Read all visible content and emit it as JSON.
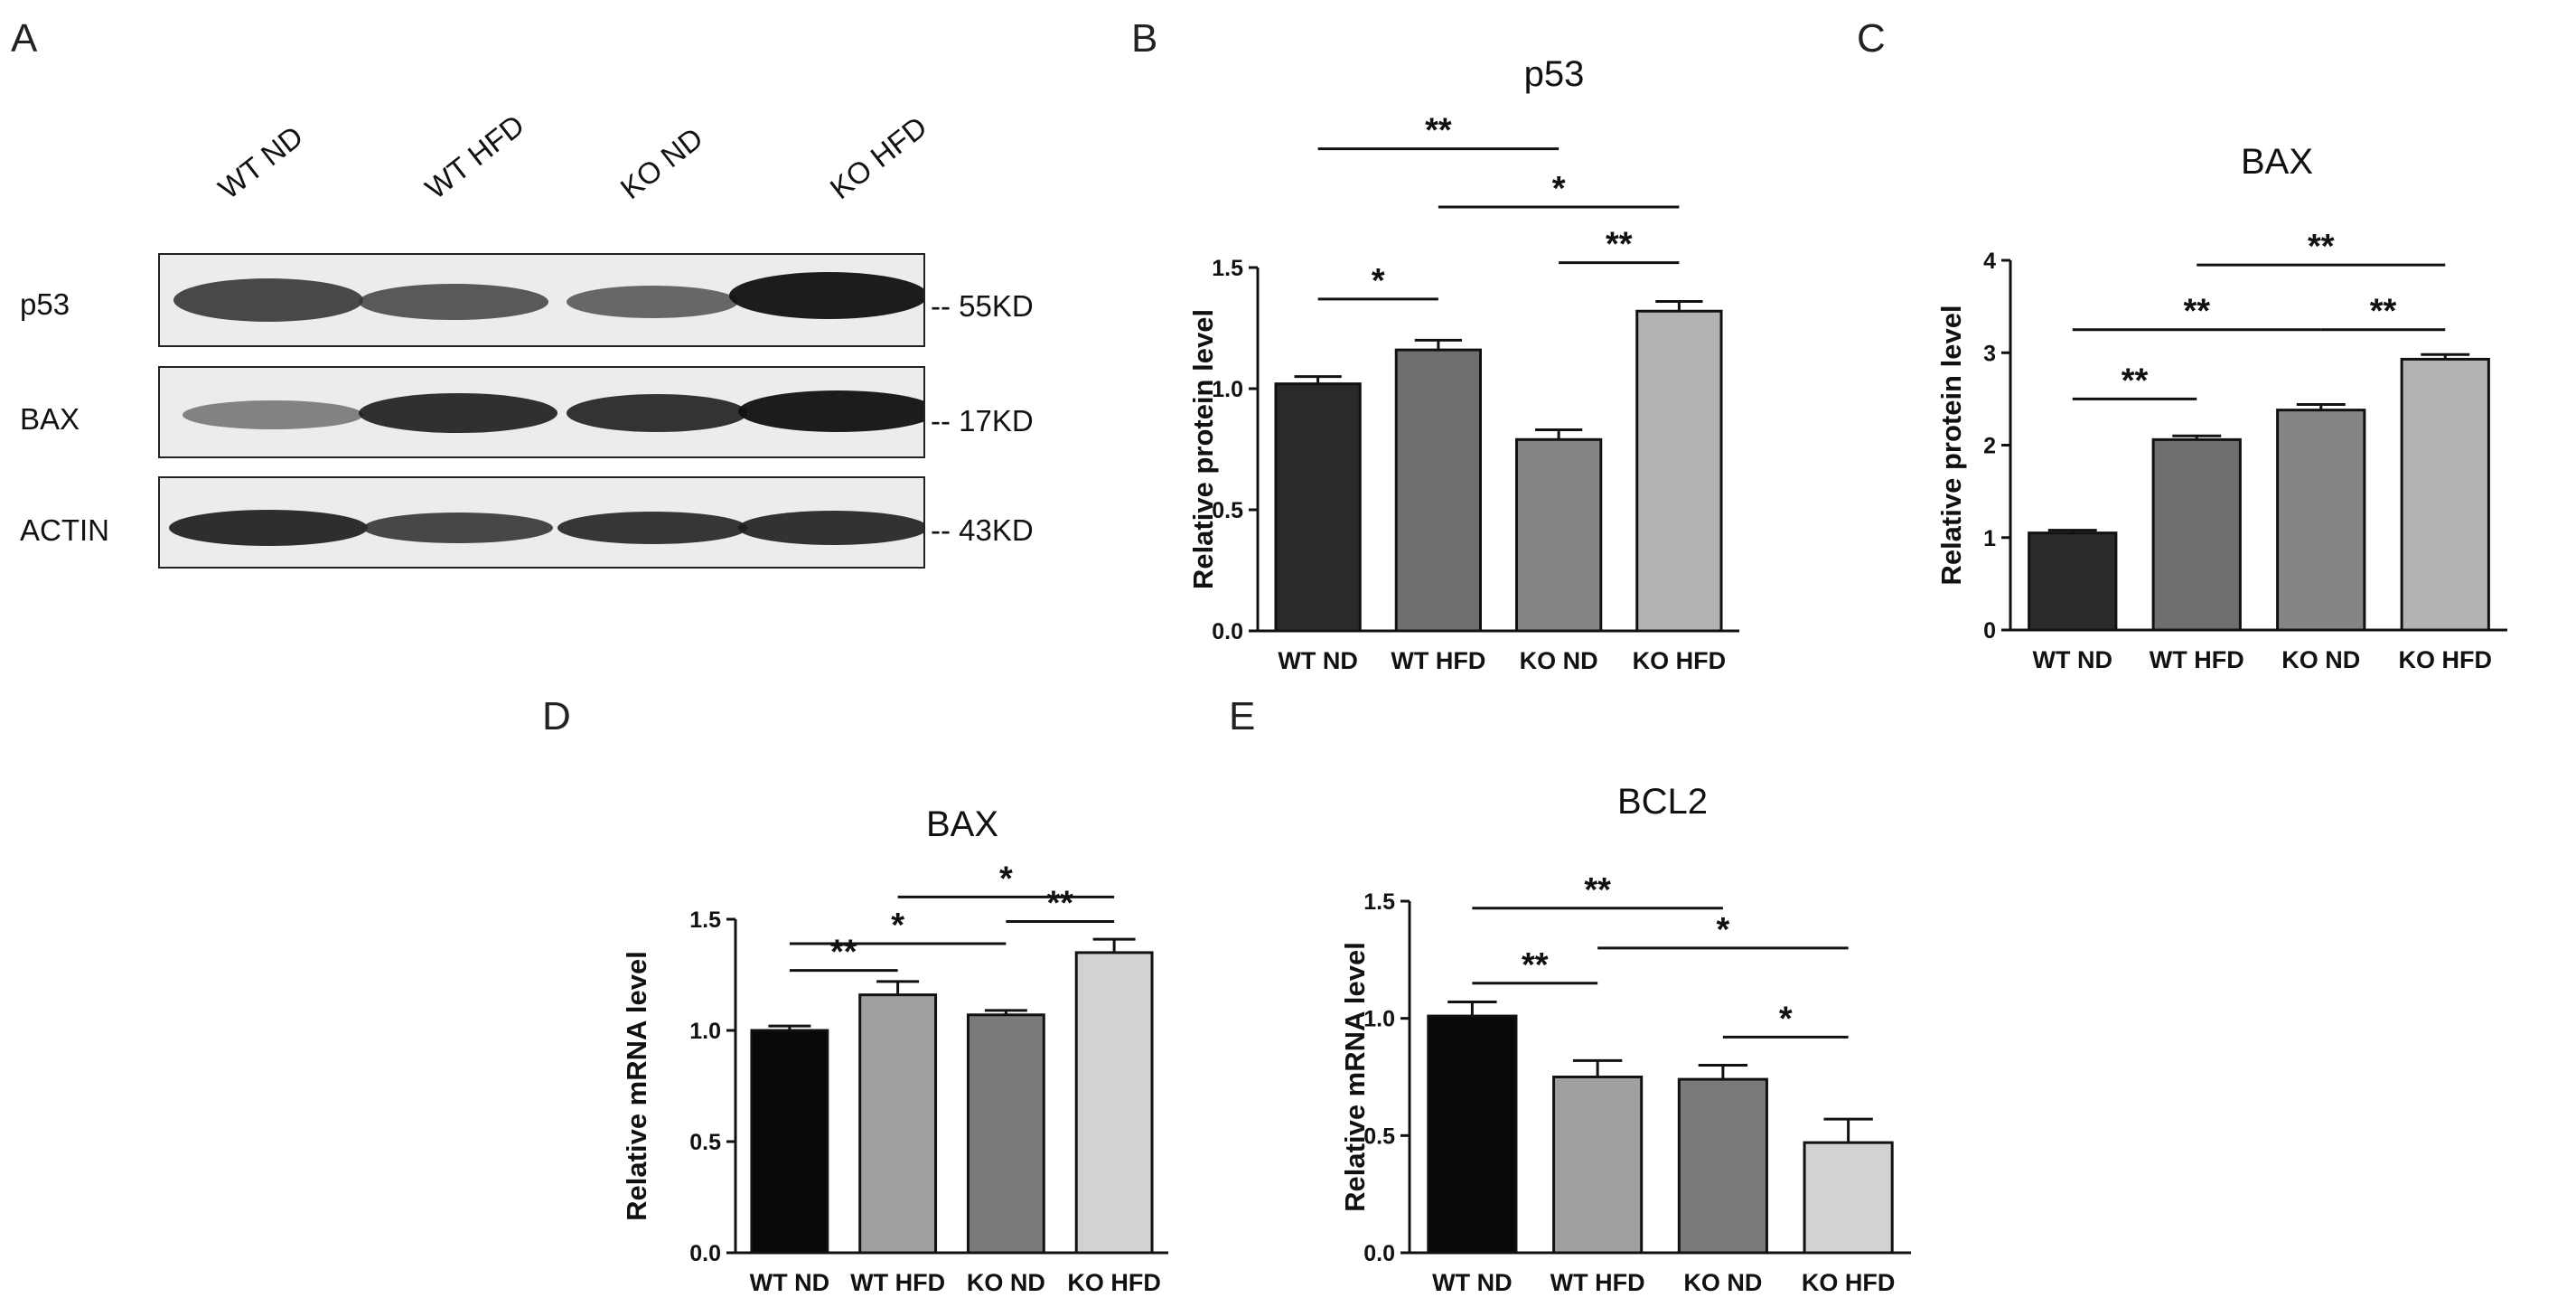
{
  "panels": {
    "a": "A",
    "b": "B",
    "c": "C",
    "d": "D",
    "e": "E"
  },
  "western": {
    "lanes": [
      "WT ND",
      "WT HFD",
      "KO ND",
      "KO HFD"
    ],
    "proteins": [
      "p53",
      "BAX",
      "ACTIN"
    ],
    "sizes": [
      "55KD",
      "17KD",
      "43KD"
    ]
  },
  "chart_data": [
    {
      "panel": "B",
      "type": "bar",
      "title": "p53",
      "ylabel": "Relative protein level",
      "categories": [
        "WT ND",
        "WT HFD",
        "KO ND",
        "KO HFD"
      ],
      "values": [
        1.02,
        1.16,
        0.79,
        1.32
      ],
      "errors": [
        0.03,
        0.04,
        0.04,
        0.04
      ],
      "ylim": [
        0,
        1.5
      ],
      "yticks": [
        "0.0",
        "0.5",
        "1.0",
        "1.5"
      ],
      "tickValues": [
        0,
        0.5,
        1.0,
        1.5
      ],
      "fills": [
        "#2a2a2a",
        "#6e6e6e",
        "#858585",
        "#b3b3b3"
      ],
      "significance": [
        {
          "from": 0,
          "to": 2,
          "level": 1.99,
          "label": "**"
        },
        {
          "from": 1,
          "to": 3,
          "level": 1.75,
          "label": "*"
        },
        {
          "from": 2,
          "to": 3,
          "level": 1.52,
          "label": "**"
        },
        {
          "from": 0,
          "to": 1,
          "level": 1.37,
          "label": "*"
        }
      ]
    },
    {
      "panel": "C",
      "type": "bar",
      "title": "BAX",
      "ylabel": "Relative protein level",
      "categories": [
        "WT ND",
        "WT HFD",
        "KO ND",
        "KO HFD"
      ],
      "values": [
        1.05,
        2.06,
        2.38,
        2.93
      ],
      "errors": [
        0.03,
        0.04,
        0.06,
        0.05
      ],
      "ylim": [
        0,
        4
      ],
      "yticks": [
        "0",
        "1",
        "2",
        "3",
        "4"
      ],
      "tickValues": [
        0,
        1,
        2,
        3,
        4
      ],
      "fills": [
        "#2a2a2a",
        "#6e6e6e",
        "#858585",
        "#b3b3b3"
      ],
      "significance": [
        {
          "from": 1,
          "to": 3,
          "level": 3.95,
          "label": "**"
        },
        {
          "from": 0,
          "to": 2,
          "level": 3.25,
          "label": "**"
        },
        {
          "from": 2,
          "to": 3,
          "level": 3.25,
          "label": "**"
        },
        {
          "from": 0,
          "to": 1,
          "level": 2.5,
          "label": "**"
        }
      ]
    },
    {
      "panel": "D",
      "type": "bar",
      "title": "BAX",
      "ylabel": "Relative mRNA level",
      "categories": [
        "WT ND",
        "WT HFD",
        "KO ND",
        "KO HFD"
      ],
      "values": [
        1.0,
        1.16,
        1.07,
        1.35
      ],
      "errors": [
        0.02,
        0.06,
        0.02,
        0.06
      ],
      "ylim": [
        0,
        1.5
      ],
      "yticks": [
        "0.0",
        "0.5",
        "1.0",
        "1.5"
      ],
      "tickValues": [
        0,
        0.5,
        1.0,
        1.5
      ],
      "fills": [
        "#080808",
        "#a0a0a0",
        "#7a7a7a",
        "#d2d2d2"
      ],
      "significance": [
        {
          "from": 1,
          "to": 3,
          "level": 1.6,
          "label": "*"
        },
        {
          "from": 2,
          "to": 3,
          "level": 1.49,
          "label": "**"
        },
        {
          "from": 0,
          "to": 2,
          "level": 1.39,
          "label": "*"
        },
        {
          "from": 0,
          "to": 1,
          "level": 1.27,
          "label": "**"
        }
      ]
    },
    {
      "panel": "E",
      "type": "bar",
      "title": "BCL2",
      "ylabel": "Relative mRNA level",
      "categories": [
        "WT ND",
        "WT HFD",
        "KO ND",
        "KO HFD"
      ],
      "values": [
        1.01,
        0.75,
        0.74,
        0.47
      ],
      "errors": [
        0.06,
        0.07,
        0.06,
        0.1
      ],
      "ylim": [
        0,
        1.5
      ],
      "yticks": [
        "0.0",
        "0.5",
        "1.0",
        "1.5"
      ],
      "tickValues": [
        0,
        0.5,
        1.0,
        1.5
      ],
      "fills": [
        "#080808",
        "#a0a0a0",
        "#7a7a7a",
        "#d2d2d2"
      ],
      "significance": [
        {
          "from": 0,
          "to": 2,
          "level": 1.47,
          "label": "**"
        },
        {
          "from": 1,
          "to": 3,
          "level": 1.3,
          "label": "*"
        },
        {
          "from": 0,
          "to": 1,
          "level": 1.15,
          "label": "**"
        },
        {
          "from": 2,
          "to": 3,
          "level": 0.92,
          "label": "*"
        }
      ]
    }
  ]
}
